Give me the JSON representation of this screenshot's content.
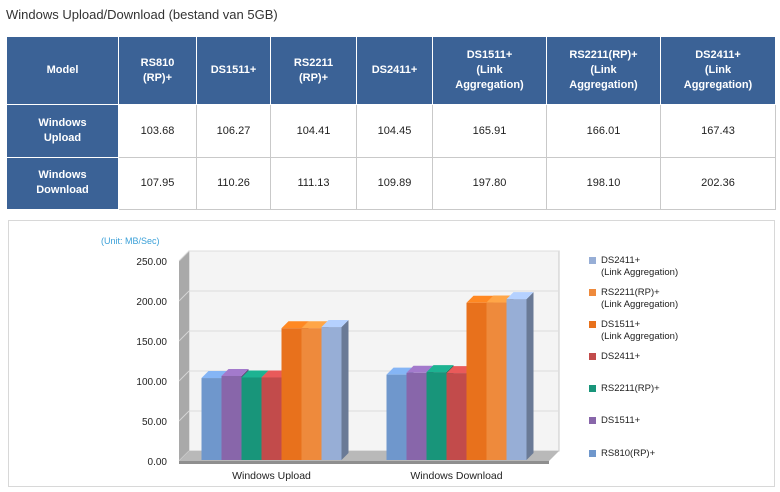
{
  "title": "Windows Upload/Download (bestand van 5GB)",
  "table": {
    "corner": "Model",
    "columns": [
      [
        "RS810",
        "(RP)+"
      ],
      [
        "DS1511+"
      ],
      [
        "RS2211",
        "(RP)+"
      ],
      [
        "DS2411+"
      ],
      [
        "DS1511+",
        "(Link",
        "Aggregation)"
      ],
      [
        "RS2211(RP)+",
        "(Link",
        "Aggregation)"
      ],
      [
        "DS2411+",
        "(Link",
        "Aggregation)"
      ]
    ],
    "rows": [
      {
        "label": [
          "Windows",
          "Upload"
        ],
        "values": [
          "103.68",
          "106.27",
          "104.41",
          "104.45",
          "165.91",
          "166.01",
          "167.43"
        ]
      },
      {
        "label": [
          "Windows",
          "Download"
        ],
        "values": [
          "107.95",
          "110.26",
          "111.13",
          "109.89",
          "197.80",
          "198.10",
          "202.36"
        ]
      }
    ]
  },
  "chart_data": {
    "type": "bar",
    "unit_label": "(Unit: MB/Sec)",
    "categories": [
      "Windows Upload",
      "Windows Download"
    ],
    "ylim": [
      0,
      250
    ],
    "yticks": [
      "0.00",
      "50.00",
      "100.00",
      "150.00",
      "200.00",
      "250.00"
    ],
    "grid": true,
    "legend_position": "right",
    "series": [
      {
        "name": "RS810(RP)+",
        "legend": [
          "RS810(RP)+"
        ],
        "color": "#6f97cc",
        "values": [
          103.68,
          107.95
        ]
      },
      {
        "name": "DS1511+",
        "legend": [
          "DS1511+"
        ],
        "color": "#8866aa",
        "values": [
          106.27,
          110.26
        ]
      },
      {
        "name": "RS2211(RP)+",
        "legend": [
          "RS2211(RP)+"
        ],
        "color": "#18957a",
        "values": [
          104.41,
          111.13
        ]
      },
      {
        "name": "DS2411+",
        "legend": [
          "DS2411+"
        ],
        "color": "#c24b4b",
        "values": [
          104.45,
          109.89
        ]
      },
      {
        "name": "DS1511+ (Link Aggregation)",
        "legend": [
          "DS1511+",
          "(Link Aggregation)"
        ],
        "color": "#e8711c",
        "values": [
          165.91,
          197.8
        ]
      },
      {
        "name": "RS2211(RP)+ (Link Aggregation)",
        "legend": [
          "RS2211(RP)+",
          "(Link Aggregation)"
        ],
        "color": "#ee8a3c",
        "values": [
          166.01,
          198.1
        ]
      },
      {
        "name": "DS2411+ (Link Aggregation)",
        "legend": [
          "DS2411+",
          "(Link Aggregation)"
        ],
        "color": "#97aed6",
        "values": [
          167.43,
          202.36
        ]
      }
    ]
  }
}
